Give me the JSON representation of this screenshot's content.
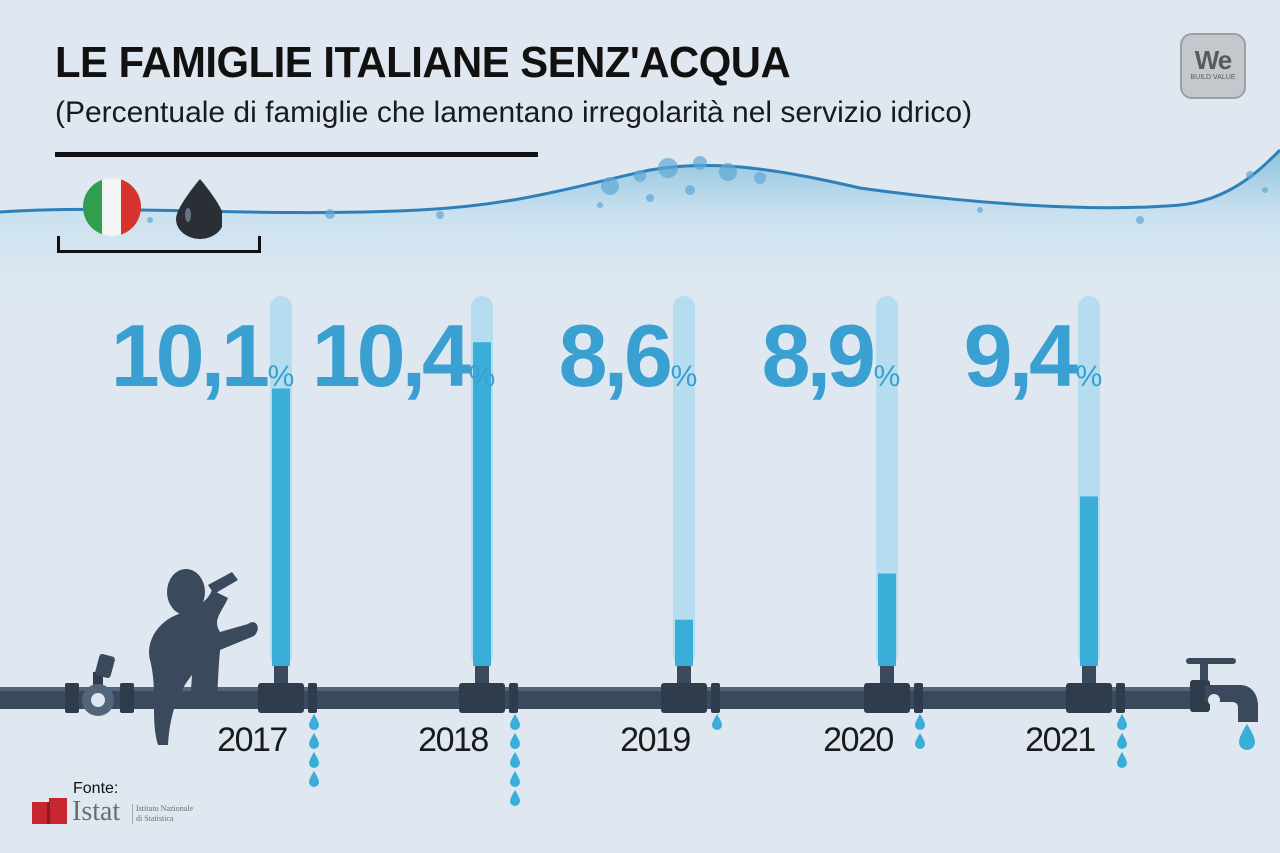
{
  "title": "LE FAMIGLIE ITALIANE SENZ'ACQUA",
  "subtitle": "(Percentuale di famiglie che lamentano irregolarità nel servizio idrico)",
  "logo": {
    "main": "We",
    "sub": "BUILD VALUE"
  },
  "legend": {
    "icons": [
      "italian-flag-icon",
      "oil-drop-icon"
    ]
  },
  "source": {
    "label": "Fonte:",
    "name": "Istat",
    "detail": "Istituto Nazionale di Statistica"
  },
  "colors": {
    "background": "#dfe8f0",
    "water": "#3aaed8",
    "tube": "#b6dcef",
    "pipe": "#3a4a5c",
    "value_text": "#3a9fd1"
  },
  "chart_data": {
    "type": "bar",
    "title": "LE FAMIGLIE ITALIANE SENZ'ACQUA",
    "categories": [
      "2017",
      "2018",
      "2019",
      "2020",
      "2021"
    ],
    "values": [
      10.1,
      10.4,
      8.6,
      8.9,
      9.4
    ],
    "labels": [
      "10,1",
      "10,4",
      "8,6",
      "8,9",
      "9,4"
    ],
    "unit": "%",
    "ylim": [
      8.3,
      10.7
    ],
    "drips": [
      4,
      5,
      1,
      2,
      3
    ]
  }
}
